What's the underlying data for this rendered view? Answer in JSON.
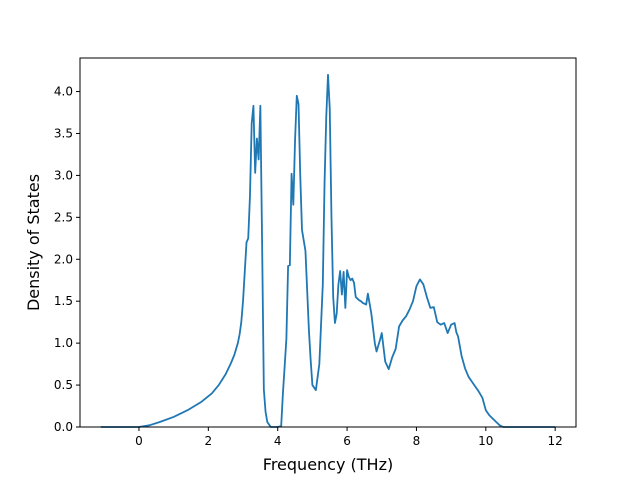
{
  "chart_data": {
    "type": "line",
    "xlabel": "Frequency (THz)",
    "ylabel": "Density of States",
    "xlim": [
      -1.7,
      12.6
    ],
    "ylim": [
      0.0,
      4.4
    ],
    "xticks": [
      0,
      2,
      4,
      6,
      8,
      10,
      12
    ],
    "yticks": [
      0.0,
      0.5,
      1.0,
      1.5,
      2.0,
      2.5,
      3.0,
      3.5,
      4.0
    ],
    "xtick_labels": [
      "0",
      "2",
      "4",
      "6",
      "8",
      "10",
      "12"
    ],
    "ytick_labels": [
      "0.0",
      "0.5",
      "1.0",
      "1.5",
      "2.0",
      "2.5",
      "3.0",
      "3.5",
      "4.0"
    ],
    "grid": false,
    "series": [
      {
        "color": "#1f77b4",
        "x": [
          -1.1,
          0.0,
          0.3,
          0.6,
          1.0,
          1.4,
          1.8,
          2.1,
          2.3,
          2.5,
          2.65,
          2.75,
          2.85,
          2.9,
          2.95,
          3.0,
          3.05,
          3.1,
          3.15,
          3.2,
          3.25,
          3.3,
          3.35,
          3.4,
          3.45,
          3.5,
          3.55,
          3.6,
          3.65,
          3.7,
          3.8,
          3.9,
          4.0,
          4.1,
          4.15,
          4.2,
          4.25,
          4.3,
          4.35,
          4.4,
          4.45,
          4.5,
          4.55,
          4.6,
          4.65,
          4.7,
          4.8,
          4.9,
          4.95,
          5.0,
          5.1,
          5.2,
          5.3,
          5.35,
          5.4,
          5.45,
          5.5,
          5.55,
          5.6,
          5.65,
          5.7,
          5.75,
          5.8,
          5.85,
          5.9,
          5.95,
          6.0,
          6.05,
          6.1,
          6.15,
          6.2,
          6.25,
          6.3,
          6.35,
          6.4,
          6.45,
          6.5,
          6.55,
          6.6,
          6.7,
          6.8,
          6.85,
          6.9,
          6.95,
          7.0,
          7.1,
          7.2,
          7.3,
          7.4,
          7.5,
          7.6,
          7.7,
          7.8,
          7.9,
          8.0,
          8.1,
          8.2,
          8.3,
          8.4,
          8.5,
          8.6,
          8.7,
          8.8,
          8.9,
          9.0,
          9.1,
          9.15,
          9.2,
          9.3,
          9.4,
          9.5,
          9.6,
          9.7,
          9.8,
          9.9,
          10.0,
          10.1,
          10.2,
          10.3,
          10.4,
          10.5,
          10.6,
          10.7,
          10.8,
          10.9,
          11.0,
          12.0
        ],
        "y": [
          0.0,
          0.0,
          0.02,
          0.06,
          0.12,
          0.2,
          0.3,
          0.4,
          0.5,
          0.63,
          0.76,
          0.86,
          1.0,
          1.1,
          1.25,
          1.5,
          1.85,
          2.2,
          2.25,
          2.75,
          3.62,
          3.83,
          3.03,
          3.44,
          3.19,
          3.83,
          2.2,
          0.45,
          0.18,
          0.06,
          0.0,
          0.0,
          0.0,
          0.01,
          0.4,
          0.72,
          1.05,
          1.92,
          1.93,
          3.02,
          2.65,
          3.42,
          3.95,
          3.85,
          3.0,
          2.35,
          2.1,
          1.15,
          0.8,
          0.5,
          0.44,
          0.75,
          1.7,
          2.9,
          3.7,
          4.2,
          3.8,
          2.5,
          1.55,
          1.24,
          1.35,
          1.7,
          1.86,
          1.58,
          1.85,
          1.42,
          1.87,
          1.79,
          1.75,
          1.77,
          1.72,
          1.55,
          1.53,
          1.51,
          1.5,
          1.48,
          1.47,
          1.46,
          1.59,
          1.35,
          1.0,
          0.9,
          0.97,
          1.04,
          1.12,
          0.78,
          0.69,
          0.83,
          0.93,
          1.2,
          1.27,
          1.32,
          1.4,
          1.5,
          1.68,
          1.76,
          1.7,
          1.55,
          1.42,
          1.43,
          1.25,
          1.22,
          1.24,
          1.12,
          1.22,
          1.24,
          1.13,
          1.08,
          0.85,
          0.7,
          0.6,
          0.54,
          0.48,
          0.42,
          0.35,
          0.2,
          0.14,
          0.1,
          0.06,
          0.02,
          0.0,
          0.0,
          0.0,
          0.0,
          0.0,
          0.0,
          0.0
        ]
      }
    ]
  }
}
